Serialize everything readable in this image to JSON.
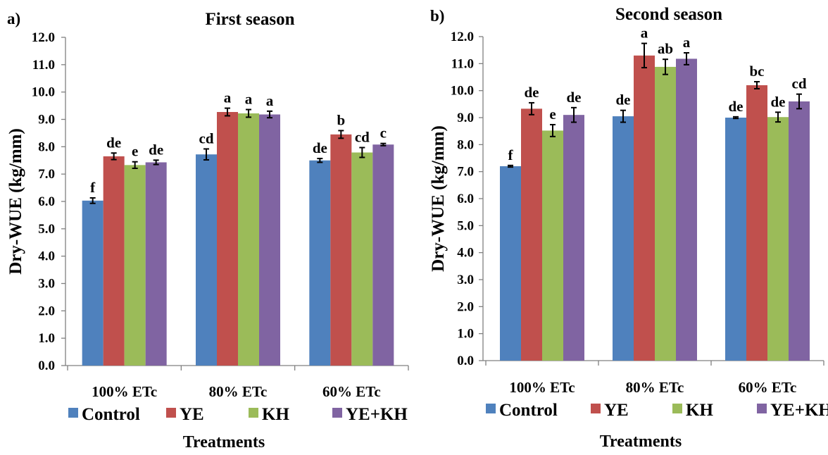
{
  "chart_data": [
    {
      "type": "bar",
      "panel_label": "a)",
      "title": "First season",
      "xlabel": "Treatments",
      "ylabel": "Dry-WUE  (kg/mm)",
      "ylim": [
        0,
        12
      ],
      "yticks": [
        "0.0",
        "1.0",
        "2.0",
        "3.0",
        "4.0",
        "5.0",
        "6.0",
        "7.0",
        "8.0",
        "9.0",
        "10.0",
        "11.0",
        "12.0"
      ],
      "categories": [
        "100% ETc",
        "80% ETc",
        "60% ETc"
      ],
      "legend_position": "bottom",
      "grid": false,
      "series": [
        {
          "name": "Control",
          "color": "#4F81BD",
          "values": [
            6.03,
            7.72,
            7.5
          ],
          "errors": [
            0.1,
            0.2,
            0.07
          ],
          "labels": [
            "f",
            "cd",
            "de"
          ]
        },
        {
          "name": "YE",
          "color": "#C0504D",
          "values": [
            7.65,
            9.27,
            8.45
          ],
          "errors": [
            0.12,
            0.14,
            0.14
          ],
          "labels": [
            "de",
            "a",
            "b"
          ]
        },
        {
          "name": "KH",
          "color": "#9BBB59",
          "values": [
            7.33,
            9.22,
            7.79
          ],
          "errors": [
            0.12,
            0.14,
            0.18
          ],
          "labels": [
            "e",
            "a",
            "cd"
          ]
        },
        {
          "name": "YE+KH",
          "color": "#8064A2",
          "values": [
            7.43,
            9.18,
            8.08
          ],
          "errors": [
            0.08,
            0.12,
            0.04
          ],
          "labels": [
            "de",
            "a",
            "c"
          ]
        }
      ]
    },
    {
      "type": "bar",
      "panel_label": "b)",
      "title": "Second season",
      "xlabel": "Treatments",
      "ylabel": "Dry-WUE  (kg/mm)",
      "ylim": [
        0,
        12
      ],
      "yticks": [
        "0.0",
        "1.0",
        "2.0",
        "3.0",
        "4.0",
        "5.0",
        "6.0",
        "7.0",
        "8.0",
        "9.0",
        "10.0",
        "11.0",
        "12.0"
      ],
      "categories": [
        "100% ETc",
        "80% ETc",
        "60% ETc"
      ],
      "legend_position": "bottom",
      "grid": false,
      "series": [
        {
          "name": "Control",
          "color": "#4F81BD",
          "values": [
            7.2,
            9.05,
            9.0
          ],
          "errors": [
            0.03,
            0.22,
            0.03
          ],
          "labels": [
            "f",
            "de",
            "de"
          ]
        },
        {
          "name": "YE",
          "color": "#C0504D",
          "values": [
            9.33,
            11.3,
            10.2
          ],
          "errors": [
            0.22,
            0.45,
            0.13
          ],
          "labels": [
            "de",
            "a",
            "bc"
          ]
        },
        {
          "name": "KH",
          "color": "#9BBB59",
          "values": [
            8.52,
            10.88,
            9.02
          ],
          "errors": [
            0.22,
            0.28,
            0.18
          ],
          "labels": [
            "e",
            "ab",
            "de"
          ]
        },
        {
          "name": "YE+KH",
          "color": "#8064A2",
          "values": [
            9.1,
            11.18,
            9.6
          ],
          "errors": [
            0.27,
            0.22,
            0.27
          ],
          "labels": [
            "de",
            "a",
            "cd"
          ]
        }
      ]
    }
  ]
}
